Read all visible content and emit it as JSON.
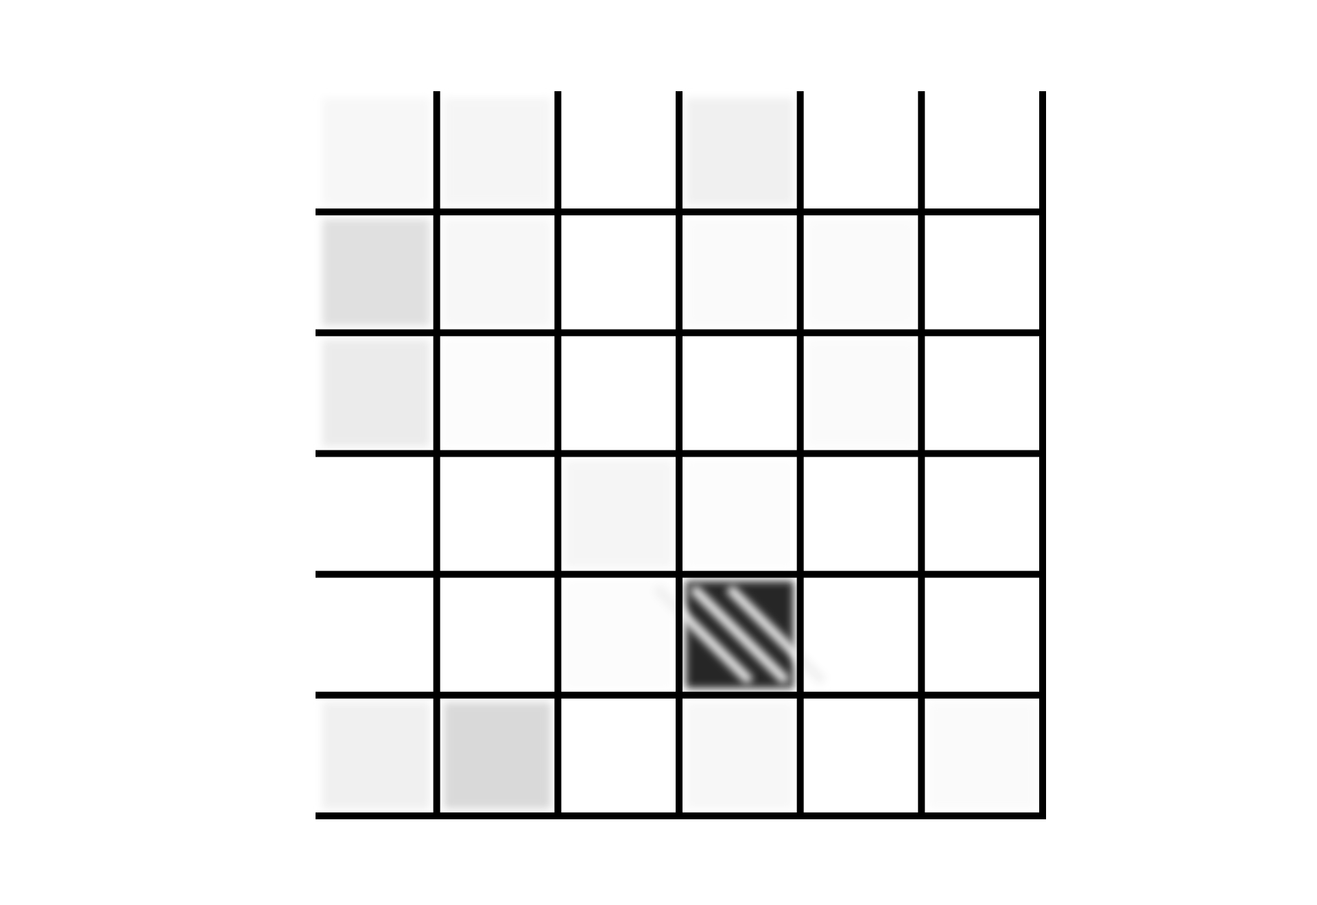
{
  "grid": {
    "rows": 6,
    "cols": 6,
    "background": "#ffffff",
    "line_color": "#000000",
    "cells": [
      [
        0.03,
        0.04,
        0.0,
        0.06,
        0.0,
        0.0
      ],
      [
        0.12,
        0.03,
        0.0,
        0.02,
        0.02,
        0.0
      ],
      [
        0.08,
        0.01,
        0.0,
        0.0,
        0.02,
        0.0
      ],
      [
        0.0,
        0.0,
        0.04,
        0.01,
        0.0,
        0.0
      ],
      [
        0.0,
        0.0,
        0.01,
        0.85,
        0.0,
        0.0
      ],
      [
        0.06,
        0.15,
        0.0,
        0.03,
        0.0,
        0.02
      ]
    ]
  }
}
